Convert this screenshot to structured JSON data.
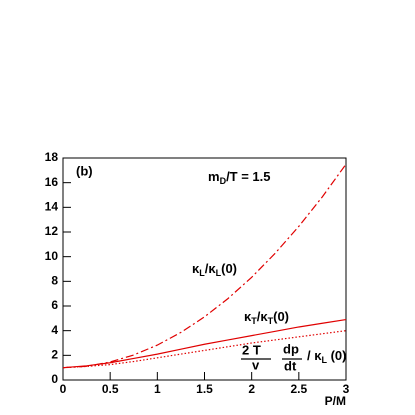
{
  "chart_data": {
    "type": "line",
    "panel_label": "(b)",
    "mass_label": [
      "m",
      "D",
      "/T = 1.5"
    ],
    "x_label": "P/M",
    "kappa_L_label": [
      "κ",
      "L",
      "/κ",
      "L",
      "(0)"
    ],
    "kappa_T_label": [
      "κ",
      "T",
      "/κ",
      "T",
      "(0)"
    ],
    "ratio_label": [
      "2 T",
      "dp",
      "v",
      "dt",
      "/ κ",
      "L",
      " (0)"
    ],
    "x": [
      0,
      0.25,
      0.5,
      0.75,
      1,
      1.25,
      1.5,
      1.75,
      2,
      2.25,
      2.5,
      2.75,
      3
    ],
    "series": [
      {
        "color": "#e00000",
        "dash": "8 3 2 3",
        "values": [
          1,
          1.11,
          1.46,
          2.03,
          2.83,
          3.86,
          5.12,
          6.61,
          8.33,
          10.28,
          12.46,
          14.86,
          17.5
        ]
      },
      {
        "color": "#e00000",
        "dash": "none",
        "values": [
          1,
          1.15,
          1.4,
          1.75,
          2.1,
          2.5,
          2.9,
          3.25,
          3.6,
          3.95,
          4.3,
          4.6,
          4.9
        ]
      },
      {
        "color": "#e00000",
        "dash": "1.5 2",
        "values": [
          1,
          1.1,
          1.25,
          1.5,
          1.8,
          2.1,
          2.4,
          2.7,
          3.0,
          3.25,
          3.5,
          3.75,
          4.0
        ]
      }
    ],
    "xlim": [
      0,
      3
    ],
    "xticks": [
      0,
      0.5,
      1,
      1.5,
      2,
      2.5,
      3
    ],
    "ylim": [
      0,
      18
    ],
    "yticks": [
      0,
      2,
      4,
      6,
      8,
      10,
      12,
      14,
      16,
      18
    ]
  }
}
